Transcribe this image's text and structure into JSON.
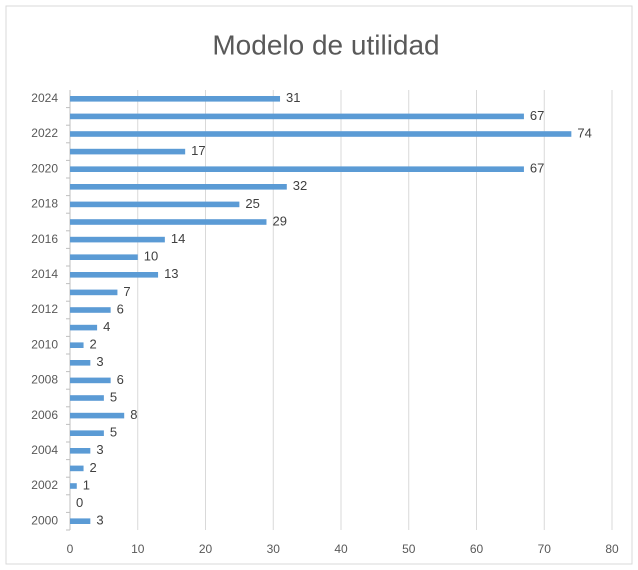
{
  "chart_data": {
    "type": "bar",
    "orientation": "horizontal",
    "title": "Modelo de utilidad",
    "categories": [
      "2000",
      null,
      "2002",
      null,
      "2004",
      null,
      "2006",
      null,
      "2008",
      null,
      "2010",
      null,
      "2012",
      null,
      "2014",
      null,
      "2016",
      null,
      "2018",
      null,
      "2020",
      null,
      "2022",
      null,
      "2024"
    ],
    "values": [
      3,
      0,
      1,
      2,
      3,
      5,
      8,
      5,
      6,
      3,
      2,
      4,
      6,
      7,
      13,
      10,
      14,
      29,
      25,
      32,
      67,
      17,
      74,
      67,
      31
    ],
    "color": "#5b9bd5",
    "xlim": [
      0,
      80
    ],
    "xticks": [
      0,
      10,
      20,
      30,
      40,
      50,
      60,
      70,
      80
    ],
    "grid": true
  }
}
